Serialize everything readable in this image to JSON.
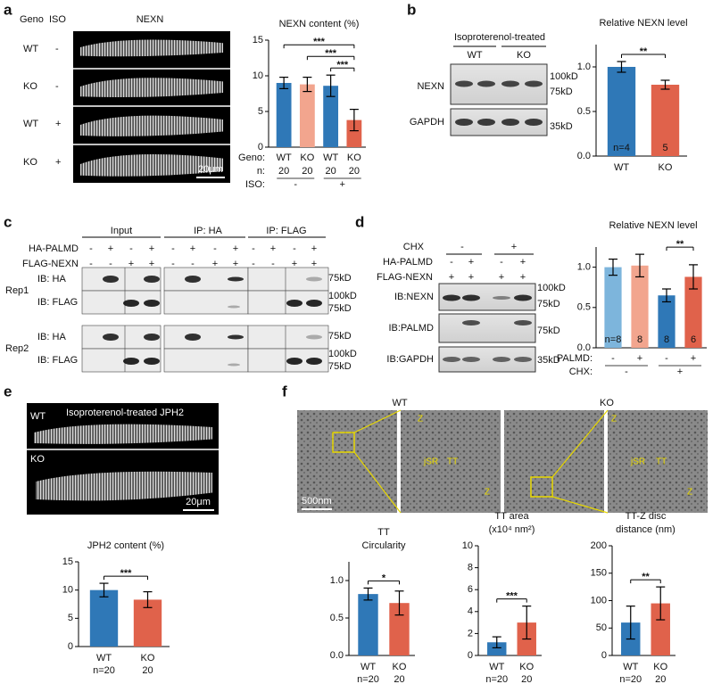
{
  "panels": {
    "a": {
      "letter": "a",
      "headers": [
        "Geno",
        "ISO",
        "NEXN"
      ],
      "rows": [
        [
          "WT",
          "-"
        ],
        [
          "KO",
          "-"
        ],
        [
          "WT",
          "+"
        ],
        [
          "KO",
          "+"
        ]
      ],
      "scale": "20μm"
    },
    "b": {
      "letter": "b",
      "title": "Isoproterenol-treated",
      "lanes": [
        "WT",
        "KO"
      ],
      "bands": [
        "NEXN",
        "GAPDH"
      ],
      "markers": [
        "100kD",
        "75kD",
        "35kD"
      ]
    },
    "c": {
      "letter": "c",
      "groups": [
        "Input",
        "IP: HA",
        "IP: FLAG"
      ],
      "conditions": [
        {
          "name": "HA-PALMD",
          "signs": [
            "-",
            "+",
            "-",
            "+",
            "-",
            "+",
            "-",
            "+",
            "-",
            "+",
            "-",
            "+"
          ]
        },
        {
          "name": "FLAG-NEXN",
          "signs": [
            "-",
            "-",
            "+",
            "+",
            "-",
            "-",
            "+",
            "+",
            "-",
            "-",
            "+",
            "+"
          ]
        }
      ],
      "reps": [
        {
          "name": "Rep1",
          "blots": [
            "IB: HA",
            "IB: FLAG"
          ],
          "markers": [
            "75kD",
            "100kD",
            "75kD"
          ]
        },
        {
          "name": "Rep2",
          "blots": [
            "IB: HA",
            "IB: FLAG"
          ],
          "markers": [
            "75kD",
            "100kD",
            "75kD"
          ]
        }
      ]
    },
    "d": {
      "letter": "d",
      "chx": {
        "name": "CHX",
        "signs": [
          "-",
          "+"
        ]
      },
      "conditions": [
        {
          "name": "HA-PALMD",
          "signs": [
            "-",
            "+",
            "-",
            "+"
          ]
        },
        {
          "name": "FLAG-NEXN",
          "signs": [
            "+",
            "+",
            "+",
            "+"
          ]
        }
      ],
      "blots": [
        "IB:NEXN",
        "IB:PALMD",
        "IB:GAPDH"
      ],
      "markers": [
        "100kD",
        "75kD",
        "75kD",
        "35kD"
      ]
    },
    "e": {
      "letter": "e",
      "title": "Isoproterenol-treated  JPH2",
      "cells": [
        "WT",
        "KO"
      ],
      "scale": "20μm"
    },
    "f": {
      "letter": "f",
      "images": [
        "WT",
        "KO"
      ],
      "scale": "500nm",
      "zoom_labels": [
        [
          "Z",
          "jSR",
          "TT",
          "Z"
        ],
        [
          "Z",
          "jSR",
          "TT",
          "Z"
        ]
      ]
    }
  },
  "chart_data": [
    {
      "type": "bar",
      "title": [
        "NEXN content (%)"
      ],
      "values": [
        9.0,
        8.8,
        8.6,
        3.8
      ],
      "errors": [
        0.8,
        1.0,
        1.5,
        1.5
      ],
      "colors": [
        "#2f78b7",
        "#f2a58e",
        "#2f78b7",
        "#e0624b"
      ],
      "ylim": [
        0,
        15
      ],
      "yticks": [
        0,
        5,
        10,
        15
      ],
      "annotations": [
        "***",
        "***",
        "***"
      ],
      "rows": [
        {
          "label": "Geno:",
          "values": [
            "WT",
            "KO",
            "WT",
            "KO"
          ]
        },
        {
          "label": "n:",
          "values": [
            "20",
            "20",
            "20",
            "20"
          ]
        },
        {
          "label": "ISO:",
          "values": [
            "-",
            "+"
          ]
        }
      ]
    },
    {
      "type": "bar",
      "title": [
        "Relative NEXN level"
      ],
      "categories": [
        "WT",
        "KO"
      ],
      "values": [
        1.0,
        0.8
      ],
      "errors": [
        0.06,
        0.05
      ],
      "colors": [
        "#2f78b7",
        "#e0624b"
      ],
      "ylim": [
        0,
        1.25
      ],
      "yticks": [
        {
          "value": 0,
          "label": "0.0"
        },
        0.5,
        {
          "value": 1,
          "label": "1.0"
        }
      ],
      "annotations": [
        "**"
      ],
      "n_labels": [
        "n=4",
        "5"
      ]
    },
    {
      "type": "bar",
      "title": [
        "Relative NEXN level"
      ],
      "values": [
        1.0,
        1.02,
        0.65,
        0.88
      ],
      "errors": [
        0.1,
        0.14,
        0.08,
        0.15
      ],
      "colors": [
        "#7db5dc",
        "#f2a58e",
        "#2f78b7",
        "#e0624b"
      ],
      "ylim": [
        0,
        1.25
      ],
      "yticks": [
        {
          "value": 0,
          "label": "0.0"
        },
        0.5,
        {
          "value": 1,
          "label": "1.0"
        }
      ],
      "annotations": [
        "**"
      ],
      "n_labels": [
        "n=8",
        "8",
        "8",
        "6"
      ],
      "rows": [
        {
          "label": "PALMD:",
          "values": [
            "-",
            "+",
            "-",
            "+"
          ]
        },
        {
          "label": "CHX:",
          "values": [
            "-",
            "+"
          ]
        }
      ]
    },
    {
      "type": "bar",
      "title": [
        "JPH2 content (%)"
      ],
      "categories": [
        "WT",
        "KO"
      ],
      "values": [
        10.0,
        8.3
      ],
      "errors": [
        1.2,
        1.4
      ],
      "colors": [
        "#2f78b7",
        "#e0624b"
      ],
      "ylim": [
        0,
        15
      ],
      "yticks": [
        0,
        5,
        10,
        15
      ],
      "annotations": [
        "***"
      ],
      "rows": [
        {
          "values": [
            "n=20",
            "20"
          ]
        }
      ]
    },
    {
      "type": "bar",
      "title": [
        "TT",
        "Circularity"
      ],
      "categories": [
        "WT",
        "KO"
      ],
      "values": [
        0.82,
        0.7
      ],
      "errors": [
        0.08,
        0.16
      ],
      "colors": [
        "#2f78b7",
        "#e0624b"
      ],
      "ylim": [
        0,
        1.25
      ],
      "yticks": [
        {
          "value": 0,
          "label": "0.0"
        },
        0.5,
        {
          "value": 1,
          "label": "1.0"
        }
      ],
      "annotations": [
        "*"
      ],
      "rows": [
        {
          "values": [
            "n=20",
            "20"
          ]
        }
      ]
    },
    {
      "type": "bar",
      "title": [
        "TT area",
        "(x10⁴ nm²)"
      ],
      "categories": [
        "WT",
        "KO"
      ],
      "values": [
        1.2,
        3.0
      ],
      "errors": [
        0.5,
        1.5
      ],
      "colors": [
        "#2f78b7",
        "#e0624b"
      ],
      "ylim": [
        0,
        10
      ],
      "yticks": [
        0,
        2,
        4,
        6,
        8,
        10
      ],
      "annotations": [
        "***"
      ],
      "rows": [
        {
          "values": [
            "n=20",
            "20"
          ]
        }
      ]
    },
    {
      "type": "bar",
      "title": [
        "TT-Z disc",
        "distance (nm)"
      ],
      "categories": [
        "WT",
        "KO"
      ],
      "values": [
        60,
        95
      ],
      "errors": [
        30,
        30
      ],
      "colors": [
        "#2f78b7",
        "#e0624b"
      ],
      "ylim": [
        0,
        200
      ],
      "yticks": [
        0,
        50,
        100,
        150,
        200
      ],
      "annotations": [
        "**"
      ],
      "rows": [
        {
          "values": [
            "n=20",
            "20"
          ]
        }
      ]
    }
  ]
}
